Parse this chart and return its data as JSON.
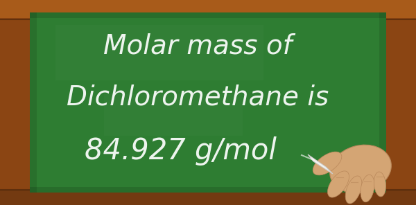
{
  "line1": "Molar mass of",
  "line2": "Dichloromethane is",
  "line3": "84.927 g/mol",
  "text_color": "#ffffff",
  "board_color": "#2e7d32",
  "board_color_dark": "#1b5e20",
  "frame_color_top": "#b5651d",
  "frame_color_mid": "#8b4513",
  "frame_color_dark": "#5d3010",
  "font_size": 28,
  "fig_width": 6.0,
  "fig_height": 2.96,
  "frame_thickness": 0.072,
  "hand_skin": "#d4a574",
  "hand_skin_dark": "#b8875a",
  "chalk_color": "#f5f5f0"
}
